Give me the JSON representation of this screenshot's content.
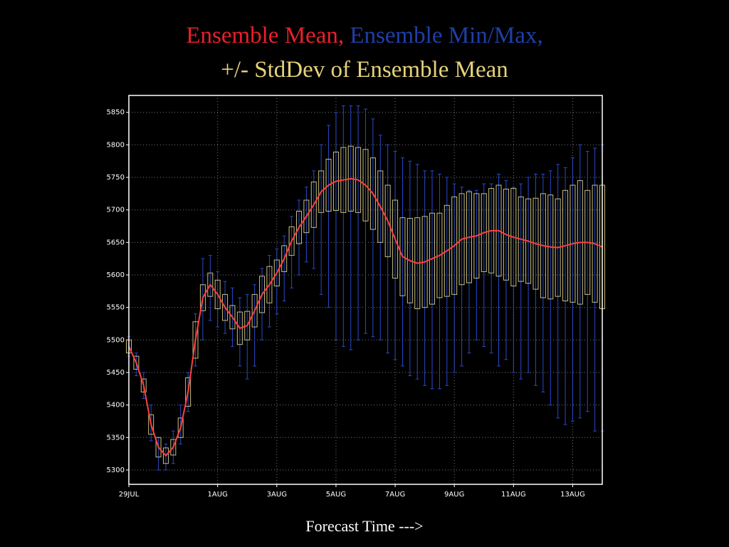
{
  "chart_data": {
    "type": "ensemble",
    "title": [
      {
        "text": "Ensemble Mean,",
        "color": "#e8202a"
      },
      {
        "text": "Ensemble Min/Max,",
        "color": "#1f3fa8"
      },
      {
        "text": "+/- StdDev of Ensemble Mean",
        "color": "#e6d27a"
      }
    ],
    "x_label": "Forecast Time --->",
    "x": [
      0,
      6,
      12,
      18,
      24,
      30,
      36,
      42,
      48,
      54,
      60,
      66,
      72,
      78,
      84,
      90,
      96,
      102,
      108,
      114,
      120,
      126,
      132,
      138,
      144,
      150,
      156,
      162,
      168,
      174,
      180,
      186,
      192,
      198,
      204,
      210,
      216,
      222,
      228,
      234,
      240,
      246,
      252,
      258,
      264,
      270,
      276,
      282,
      288,
      294,
      300,
      306,
      312,
      318,
      324,
      330,
      336,
      342,
      348,
      354,
      360,
      366,
      372,
      378,
      384
    ],
    "mean": {
      "color": "#ff4040",
      "values": [
        5490,
        5465,
        5430,
        5370,
        5335,
        5322,
        5335,
        5365,
        5420,
        5500,
        5565,
        5585,
        5570,
        5550,
        5535,
        5518,
        5522,
        5545,
        5570,
        5585,
        5603,
        5625,
        5652,
        5673,
        5690,
        5708,
        5728,
        5738,
        5744,
        5746,
        5748,
        5746,
        5738,
        5725,
        5705,
        5683,
        5655,
        5628,
        5622,
        5618,
        5620,
        5625,
        5630,
        5637,
        5645,
        5655,
        5658,
        5660,
        5665,
        5668,
        5668,
        5662,
        5658,
        5655,
        5652,
        5648,
        5645,
        5643,
        5642,
        5645,
        5648,
        5650,
        5650,
        5648,
        5643
      ]
    },
    "std": {
      "color": "#c9c07a",
      "values": [
        10,
        10,
        10,
        15,
        15,
        12,
        12,
        15,
        22,
        28,
        20,
        18,
        22,
        20,
        18,
        25,
        22,
        25,
        28,
        28,
        20,
        20,
        22,
        25,
        25,
        35,
        32,
        40,
        45,
        50,
        50,
        50,
        55,
        55,
        55,
        55,
        60,
        60,
        65,
        70,
        70,
        70,
        65,
        70,
        75,
        70,
        70,
        65,
        60,
        65,
        70,
        70,
        75,
        65,
        65,
        70,
        80,
        80,
        75,
        85,
        90,
        95,
        80,
        90,
        95
      ]
    },
    "min": {
      "color": "#2a48c8",
      "values": [
        5475,
        5445,
        5410,
        5345,
        5300,
        5300,
        5310,
        5340,
        5390,
        5460,
        5500,
        5530,
        5520,
        5510,
        5490,
        5460,
        5440,
        5460,
        5500,
        5520,
        5540,
        5560,
        5580,
        5600,
        5620,
        5610,
        5570,
        5550,
        5500,
        5490,
        5485,
        5500,
        5510,
        5505,
        5500,
        5480,
        5470,
        5460,
        5445,
        5440,
        5430,
        5425,
        5425,
        5430,
        5450,
        5460,
        5480,
        5500,
        5490,
        5480,
        5460,
        5470,
        5450,
        5440,
        5450,
        5430,
        5420,
        5400,
        5380,
        5370,
        5375,
        5380,
        5390,
        5360,
        5360
      ]
    },
    "max": {
      "color": "#2a48c8",
      "values": [
        5505,
        5480,
        5450,
        5400,
        5350,
        5340,
        5360,
        5400,
        5450,
        5540,
        5625,
        5630,
        5605,
        5590,
        5580,
        5565,
        5570,
        5585,
        5610,
        5630,
        5640,
        5660,
        5690,
        5715,
        5735,
        5760,
        5800,
        5830,
        5850,
        5860,
        5860,
        5860,
        5855,
        5840,
        5815,
        5800,
        5790,
        5780,
        5775,
        5770,
        5760,
        5760,
        5755,
        5750,
        5740,
        5735,
        5730,
        5730,
        5740,
        5740,
        5755,
        5745,
        5735,
        5740,
        5750,
        5755,
        5755,
        5760,
        5770,
        5765,
        5780,
        5800,
        5790,
        5795,
        5800
      ]
    },
    "xlim": [
      0,
      384
    ],
    "xticks": [
      {
        "value": 0,
        "label": "29JUL"
      },
      {
        "value": 72,
        "label": "1AUG"
      },
      {
        "value": 120,
        "label": "3AUG"
      },
      {
        "value": 168,
        "label": "5AUG"
      },
      {
        "value": 216,
        "label": "7AUG"
      },
      {
        "value": 264,
        "label": "9AUG"
      },
      {
        "value": 312,
        "label": "11AUG"
      },
      {
        "value": 360,
        "label": "13AUG"
      }
    ],
    "ylim": [
      5278,
      5876
    ],
    "yticks": [
      5300,
      5350,
      5400,
      5450,
      5500,
      5550,
      5600,
      5650,
      5700,
      5750,
      5800,
      5850
    ],
    "grid": true
  }
}
